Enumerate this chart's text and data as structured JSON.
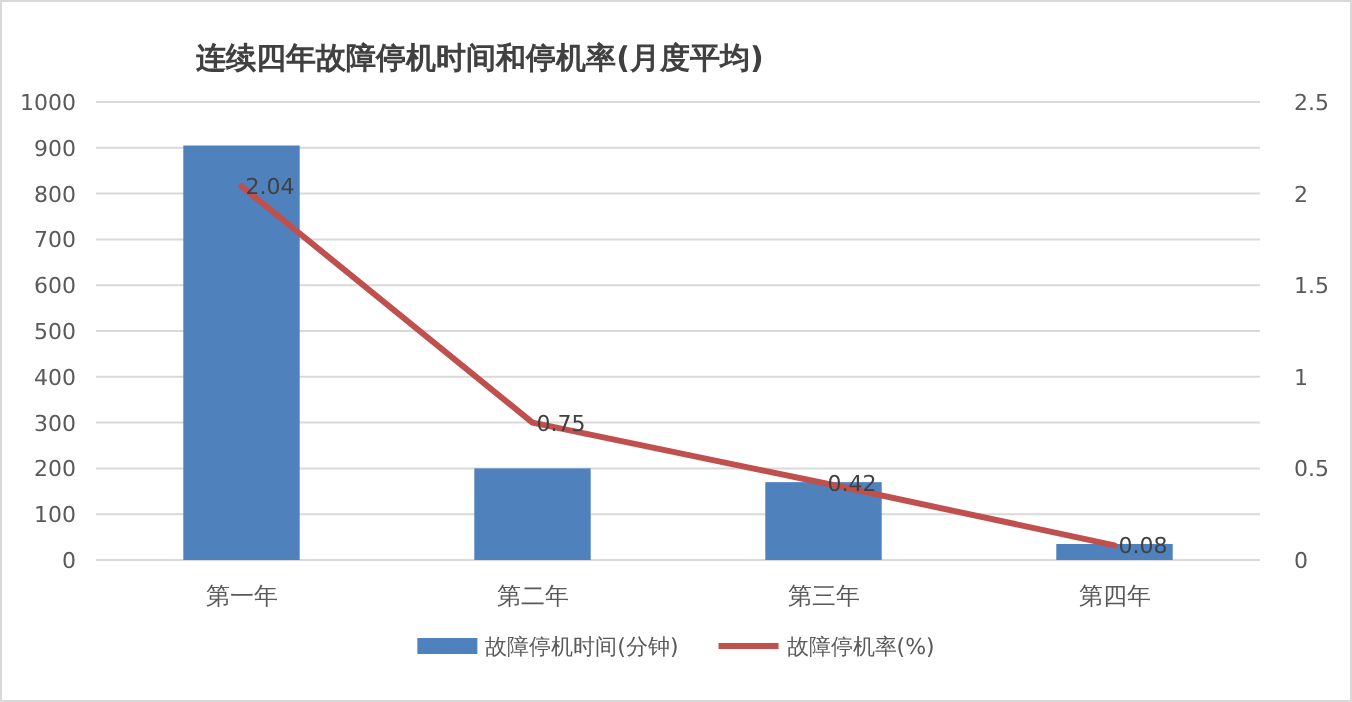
{
  "chart_data": {
    "type": "bar",
    "title": "连续四年故障停机时间和停机率(月度平均)",
    "categories": [
      "第一年",
      "第二年",
      "第三年",
      "第四年"
    ],
    "series": [
      {
        "name": "故障停机时间(分钟)",
        "color": "#4f81bd",
        "values": [
          905,
          200,
          170,
          35
        ]
      },
      {
        "name": "故障停机率(%)",
        "type": "line",
        "axis": "y2",
        "color": "#c0504d",
        "values": [
          2.04,
          0.75,
          0.42,
          0.08
        ],
        "value_labels": [
          "2.04",
          "0.75",
          "0.42",
          "0.08"
        ]
      }
    ],
    "ylim": [
      0,
      1000
    ],
    "yticks": [
      0,
      100,
      200,
      300,
      400,
      500,
      600,
      700,
      800,
      900,
      1000
    ],
    "y2lim": [
      0,
      2.5
    ],
    "y2ticks": [
      0,
      0.5,
      1,
      1.5,
      2,
      2.5
    ],
    "grid": "y",
    "legend": "bottom"
  }
}
